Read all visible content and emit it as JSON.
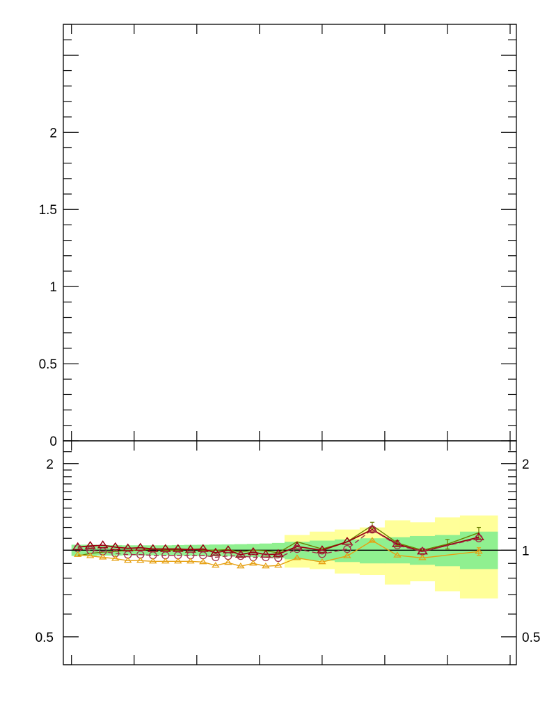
{
  "colors": {
    "green_band": "#90f090",
    "yellow_band": "#ffff99",
    "olive": "#6b7f00",
    "darkred": "#990011",
    "maroon_circle": "#a0304a",
    "orange": "#e6a012",
    "reference_line": "#000000"
  },
  "chart_data": [
    {
      "type": "line",
      "panel": "main",
      "ylim": [
        0,
        2.7
      ],
      "yticks": [
        0,
        0.5,
        1,
        1.5,
        2
      ],
      "ytick_labels": [
        "0",
        "0.5",
        "1",
        "1.5",
        "2"
      ],
      "series": []
    },
    {
      "type": "line",
      "panel": "ratio",
      "yscale": "log",
      "ylim": [
        0.4,
        2.4
      ],
      "yticks": [
        0.5,
        1,
        2
      ],
      "ytick_labels_left": [
        "0.5",
        "2"
      ],
      "ytick_labels_right": [
        "0.5",
        "1",
        "2"
      ],
      "reference_line": 1.0,
      "bins": [
        [
          1,
          2
        ],
        [
          2,
          3
        ],
        [
          3,
          4
        ],
        [
          4,
          5
        ],
        [
          5,
          6
        ],
        [
          6,
          7
        ],
        [
          7,
          8
        ],
        [
          8,
          9
        ],
        [
          9,
          10
        ],
        [
          10,
          11
        ],
        [
          11,
          12
        ],
        [
          12,
          13
        ],
        [
          13,
          14
        ],
        [
          14,
          15
        ],
        [
          15,
          16
        ],
        [
          16,
          17
        ],
        [
          17,
          18
        ],
        [
          18,
          20
        ],
        [
          20,
          22
        ],
        [
          22,
          24
        ],
        [
          24,
          26
        ],
        [
          26,
          28
        ],
        [
          28,
          30
        ],
        [
          30,
          32
        ],
        [
          32,
          35
        ]
      ],
      "bands": {
        "green": [
          [
            0.955,
            1.045
          ],
          [
            0.955,
            1.045
          ],
          [
            0.958,
            1.042
          ],
          [
            0.958,
            1.042
          ],
          [
            0.96,
            1.04
          ],
          [
            0.96,
            1.04
          ],
          [
            0.96,
            1.04
          ],
          [
            0.96,
            1.04
          ],
          [
            0.958,
            1.042
          ],
          [
            0.956,
            1.044
          ],
          [
            0.955,
            1.045
          ],
          [
            0.953,
            1.047
          ],
          [
            0.952,
            1.048
          ],
          [
            0.95,
            1.05
          ],
          [
            0.948,
            1.052
          ],
          [
            0.945,
            1.055
          ],
          [
            0.94,
            1.06
          ],
          [
            0.93,
            1.07
          ],
          [
            0.92,
            1.08
          ],
          [
            0.91,
            1.09
          ],
          [
            0.9,
            1.1
          ],
          [
            0.9,
            1.11
          ],
          [
            0.89,
            1.12
          ],
          [
            0.88,
            1.13
          ],
          [
            0.86,
            1.16
          ]
        ],
        "yellow": [
          [
            0.955,
            1.045
          ],
          [
            0.955,
            1.045
          ],
          [
            0.958,
            1.042
          ],
          [
            0.958,
            1.042
          ],
          [
            0.96,
            1.04
          ],
          [
            0.96,
            1.04
          ],
          [
            0.96,
            1.04
          ],
          [
            0.96,
            1.04
          ],
          [
            0.958,
            1.042
          ],
          [
            0.956,
            1.044
          ],
          [
            0.955,
            1.045
          ],
          [
            0.953,
            1.047
          ],
          [
            0.952,
            1.048
          ],
          [
            0.95,
            1.05
          ],
          [
            0.948,
            1.052
          ],
          [
            0.945,
            1.055
          ],
          [
            0.94,
            1.06
          ],
          [
            0.87,
            1.13
          ],
          [
            0.86,
            1.16
          ],
          [
            0.83,
            1.18
          ],
          [
            0.82,
            1.2
          ],
          [
            0.76,
            1.27
          ],
          [
            0.78,
            1.25
          ],
          [
            0.72,
            1.3
          ],
          [
            0.68,
            1.32
          ]
        ],
        "green_bins": [
          0,
          1,
          2,
          3,
          4,
          5,
          6,
          7,
          8,
          9,
          10,
          11,
          12,
          13,
          14,
          15,
          16,
          17,
          18,
          19,
          20,
          21,
          22,
          23,
          24
        ],
        "yellow_start_bin": 17
      },
      "series": [
        {
          "color": "olive",
          "marker": "none",
          "style": "solid",
          "x": [
            1.5,
            2.5,
            3.5,
            4.5,
            5.5,
            6.5,
            7.5,
            8.5,
            9.5,
            10.5,
            11.5,
            12.5,
            13.5,
            14.5,
            15.5,
            16.5,
            17.5,
            19,
            21,
            23,
            25,
            27,
            29,
            31,
            33.5
          ],
          "y": [
            0.955,
            0.975,
            0.985,
            0.99,
            1.0,
            1.0,
            1.01,
            1.0,
            1.0,
            1.01,
            1.0,
            1.0,
            1.005,
            0.985,
            1.0,
            0.995,
            0.98,
            1.07,
            1.01,
            1.07,
            1.22,
            1.06,
            1.0,
            1.05,
            1.15
          ],
          "yerr": [
            0,
            0,
            0,
            0,
            0,
            0,
            0,
            0,
            0,
            0,
            0,
            0,
            0,
            0,
            0,
            0,
            0,
            0,
            0,
            0,
            0.03,
            0.02,
            0,
            0.04,
            0.05
          ]
        },
        {
          "color": "darkred",
          "marker": "triangle-large",
          "style": "solid",
          "x": [
            1.5,
            2.5,
            3.5,
            4.5,
            5.5,
            6.5,
            7.5,
            8.5,
            9.5,
            10.5,
            11.5,
            12.5,
            13.5,
            14.5,
            15.5,
            16.5,
            17.5,
            19,
            21,
            23,
            25,
            27,
            29,
            33.5
          ],
          "y": [
            1.025,
            1.035,
            1.04,
            1.025,
            1.015,
            1.02,
            1.01,
            1.01,
            1.01,
            1.005,
            1.01,
            0.98,
            1.0,
            0.965,
            0.985,
            0.965,
            0.97,
            1.03,
            1.0,
            1.07,
            1.18,
            1.05,
            0.99,
            1.11
          ]
        },
        {
          "color": "maroon_circle",
          "marker": "circle",
          "style": "dashed",
          "x": [
            1.5,
            2.5,
            3.5,
            4.5,
            5.5,
            6.5,
            7.5,
            8.5,
            9.5,
            10.5,
            11.5,
            12.5,
            13.5,
            14.5,
            15.5,
            16.5,
            17.5,
            19,
            21,
            23,
            25,
            27,
            29,
            33.5
          ],
          "y": [
            1.015,
            1.0,
            0.99,
            0.975,
            0.965,
            0.965,
            0.96,
            0.96,
            0.96,
            0.96,
            0.96,
            0.945,
            0.955,
            0.955,
            0.945,
            0.945,
            0.94,
            1.01,
            0.97,
            1.01,
            1.18,
            1.04,
            0.99,
            1.1
          ]
        },
        {
          "color": "orange",
          "marker": "triangle-small",
          "style": "solid",
          "x": [
            1.5,
            2.5,
            3.5,
            4.5,
            5.5,
            6.5,
            7.5,
            8.5,
            9.5,
            10.5,
            11.5,
            12.5,
            13.5,
            14.5,
            15.5,
            16.5,
            17.5,
            19,
            21,
            23,
            25,
            27,
            29,
            33.5
          ],
          "y": [
            0.965,
            0.955,
            0.945,
            0.935,
            0.92,
            0.92,
            0.915,
            0.915,
            0.915,
            0.915,
            0.91,
            0.885,
            0.905,
            0.88,
            0.9,
            0.88,
            0.885,
            0.94,
            0.91,
            0.955,
            1.08,
            0.96,
            0.94,
            0.99
          ],
          "yerr": [
            0,
            0,
            0,
            0,
            0,
            0,
            0,
            0,
            0,
            0,
            0,
            0,
            0,
            0,
            0,
            0,
            0,
            0,
            0,
            0,
            0,
            0,
            0,
            0.03
          ]
        }
      ]
    }
  ]
}
